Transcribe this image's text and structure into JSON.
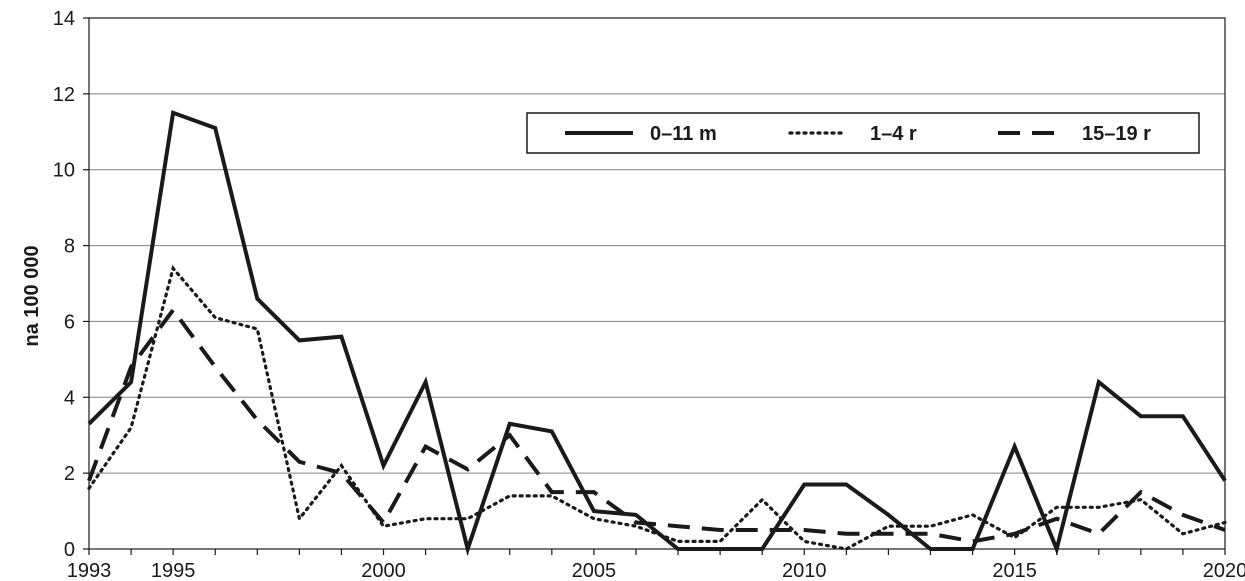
{
  "chart_data": {
    "type": "line",
    "ylabel": "na 100 000",
    "xlabel": "",
    "xlim": [
      1993,
      2020
    ],
    "ylim": [
      0,
      14
    ],
    "yticks": [
      0,
      2,
      4,
      6,
      8,
      10,
      12,
      14
    ],
    "xtick_labels": [
      "1993",
      "1995",
      "2000",
      "2005",
      "2010",
      "2015",
      "2020"
    ],
    "grid": "horizontal",
    "legend_position": "top-right",
    "x": [
      1993,
      1994,
      1995,
      1996,
      1997,
      1998,
      1999,
      2000,
      2001,
      2002,
      2003,
      2004,
      2005,
      2006,
      2007,
      2008,
      2009,
      2010,
      2011,
      2012,
      2013,
      2014,
      2015,
      2016,
      2017,
      2018,
      2019,
      2020
    ],
    "series": [
      {
        "name": "0–11 m",
        "style": "solid",
        "values": [
          3.3,
          4.4,
          11.5,
          11.1,
          6.6,
          5.5,
          5.6,
          2.2,
          4.4,
          0.0,
          3.3,
          3.1,
          1.0,
          0.9,
          0.0,
          0.0,
          0.0,
          1.7,
          1.7,
          0.9,
          0.0,
          0.0,
          2.7,
          0.0,
          4.4,
          3.5,
          3.5,
          1.8
        ]
      },
      {
        "name": "1–4 r",
        "style": "dotted",
        "values": [
          1.6,
          3.2,
          7.4,
          6.1,
          5.8,
          0.8,
          2.2,
          0.6,
          0.8,
          0.8,
          1.4,
          1.4,
          0.8,
          0.6,
          0.2,
          0.2,
          1.3,
          0.2,
          0.0,
          0.6,
          0.6,
          0.9,
          0.3,
          1.1,
          1.1,
          1.3,
          0.4,
          0.7
        ]
      },
      {
        "name": "15–19 r",
        "style": "dashed",
        "values": [
          1.8,
          4.8,
          6.3,
          4.8,
          3.4,
          2.3,
          2.0,
          0.7,
          2.7,
          2.1,
          3.0,
          1.5,
          1.5,
          0.7,
          0.6,
          0.5,
          0.5,
          0.5,
          0.4,
          0.4,
          0.4,
          0.2,
          0.4,
          0.8,
          0.4,
          1.5,
          0.9,
          0.5
        ]
      }
    ],
    "colors": {
      "line": "#1a1a1a",
      "grid": "#808080",
      "background": "#ffffff"
    }
  }
}
